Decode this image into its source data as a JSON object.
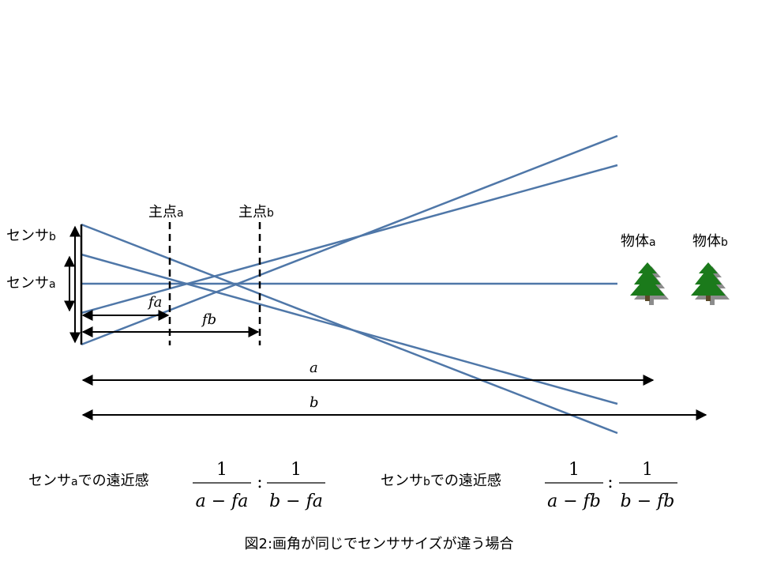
{
  "sensors": {
    "b_label": "センサ",
    "b_sub": "b",
    "a_label": "センサ",
    "a_sub": "a"
  },
  "principal_points": {
    "a_label": "主点",
    "a_sub": "a",
    "b_label": "主点",
    "b_sub": "b"
  },
  "objects": {
    "a_label": "物体",
    "a_sub": "a",
    "b_label": "物体",
    "b_sub": "b"
  },
  "dimensions": {
    "fa": "fa",
    "fb": "fb",
    "a": "a",
    "b": "b"
  },
  "perspective": {
    "sensor_a": {
      "label": "センサ",
      "sub": "a",
      "suffix": "での遠近感",
      "num1": "1",
      "den1": "a − fa",
      "num2": "1",
      "den2": "b − fa"
    },
    "sensor_b": {
      "label": "センサ",
      "sub": "b",
      "suffix": "での遠近感",
      "num1": "1",
      "den1": "a − fb",
      "num2": "1",
      "den2": "b − fb"
    },
    "ratio_sep": ":"
  },
  "caption": "図2:画角が同じでセンササイズが違う場合",
  "colors": {
    "ray": "#4f77a8",
    "tree": "#1b7a1b",
    "tree_shadow": "#8c8c8c",
    "line": "#000000"
  }
}
